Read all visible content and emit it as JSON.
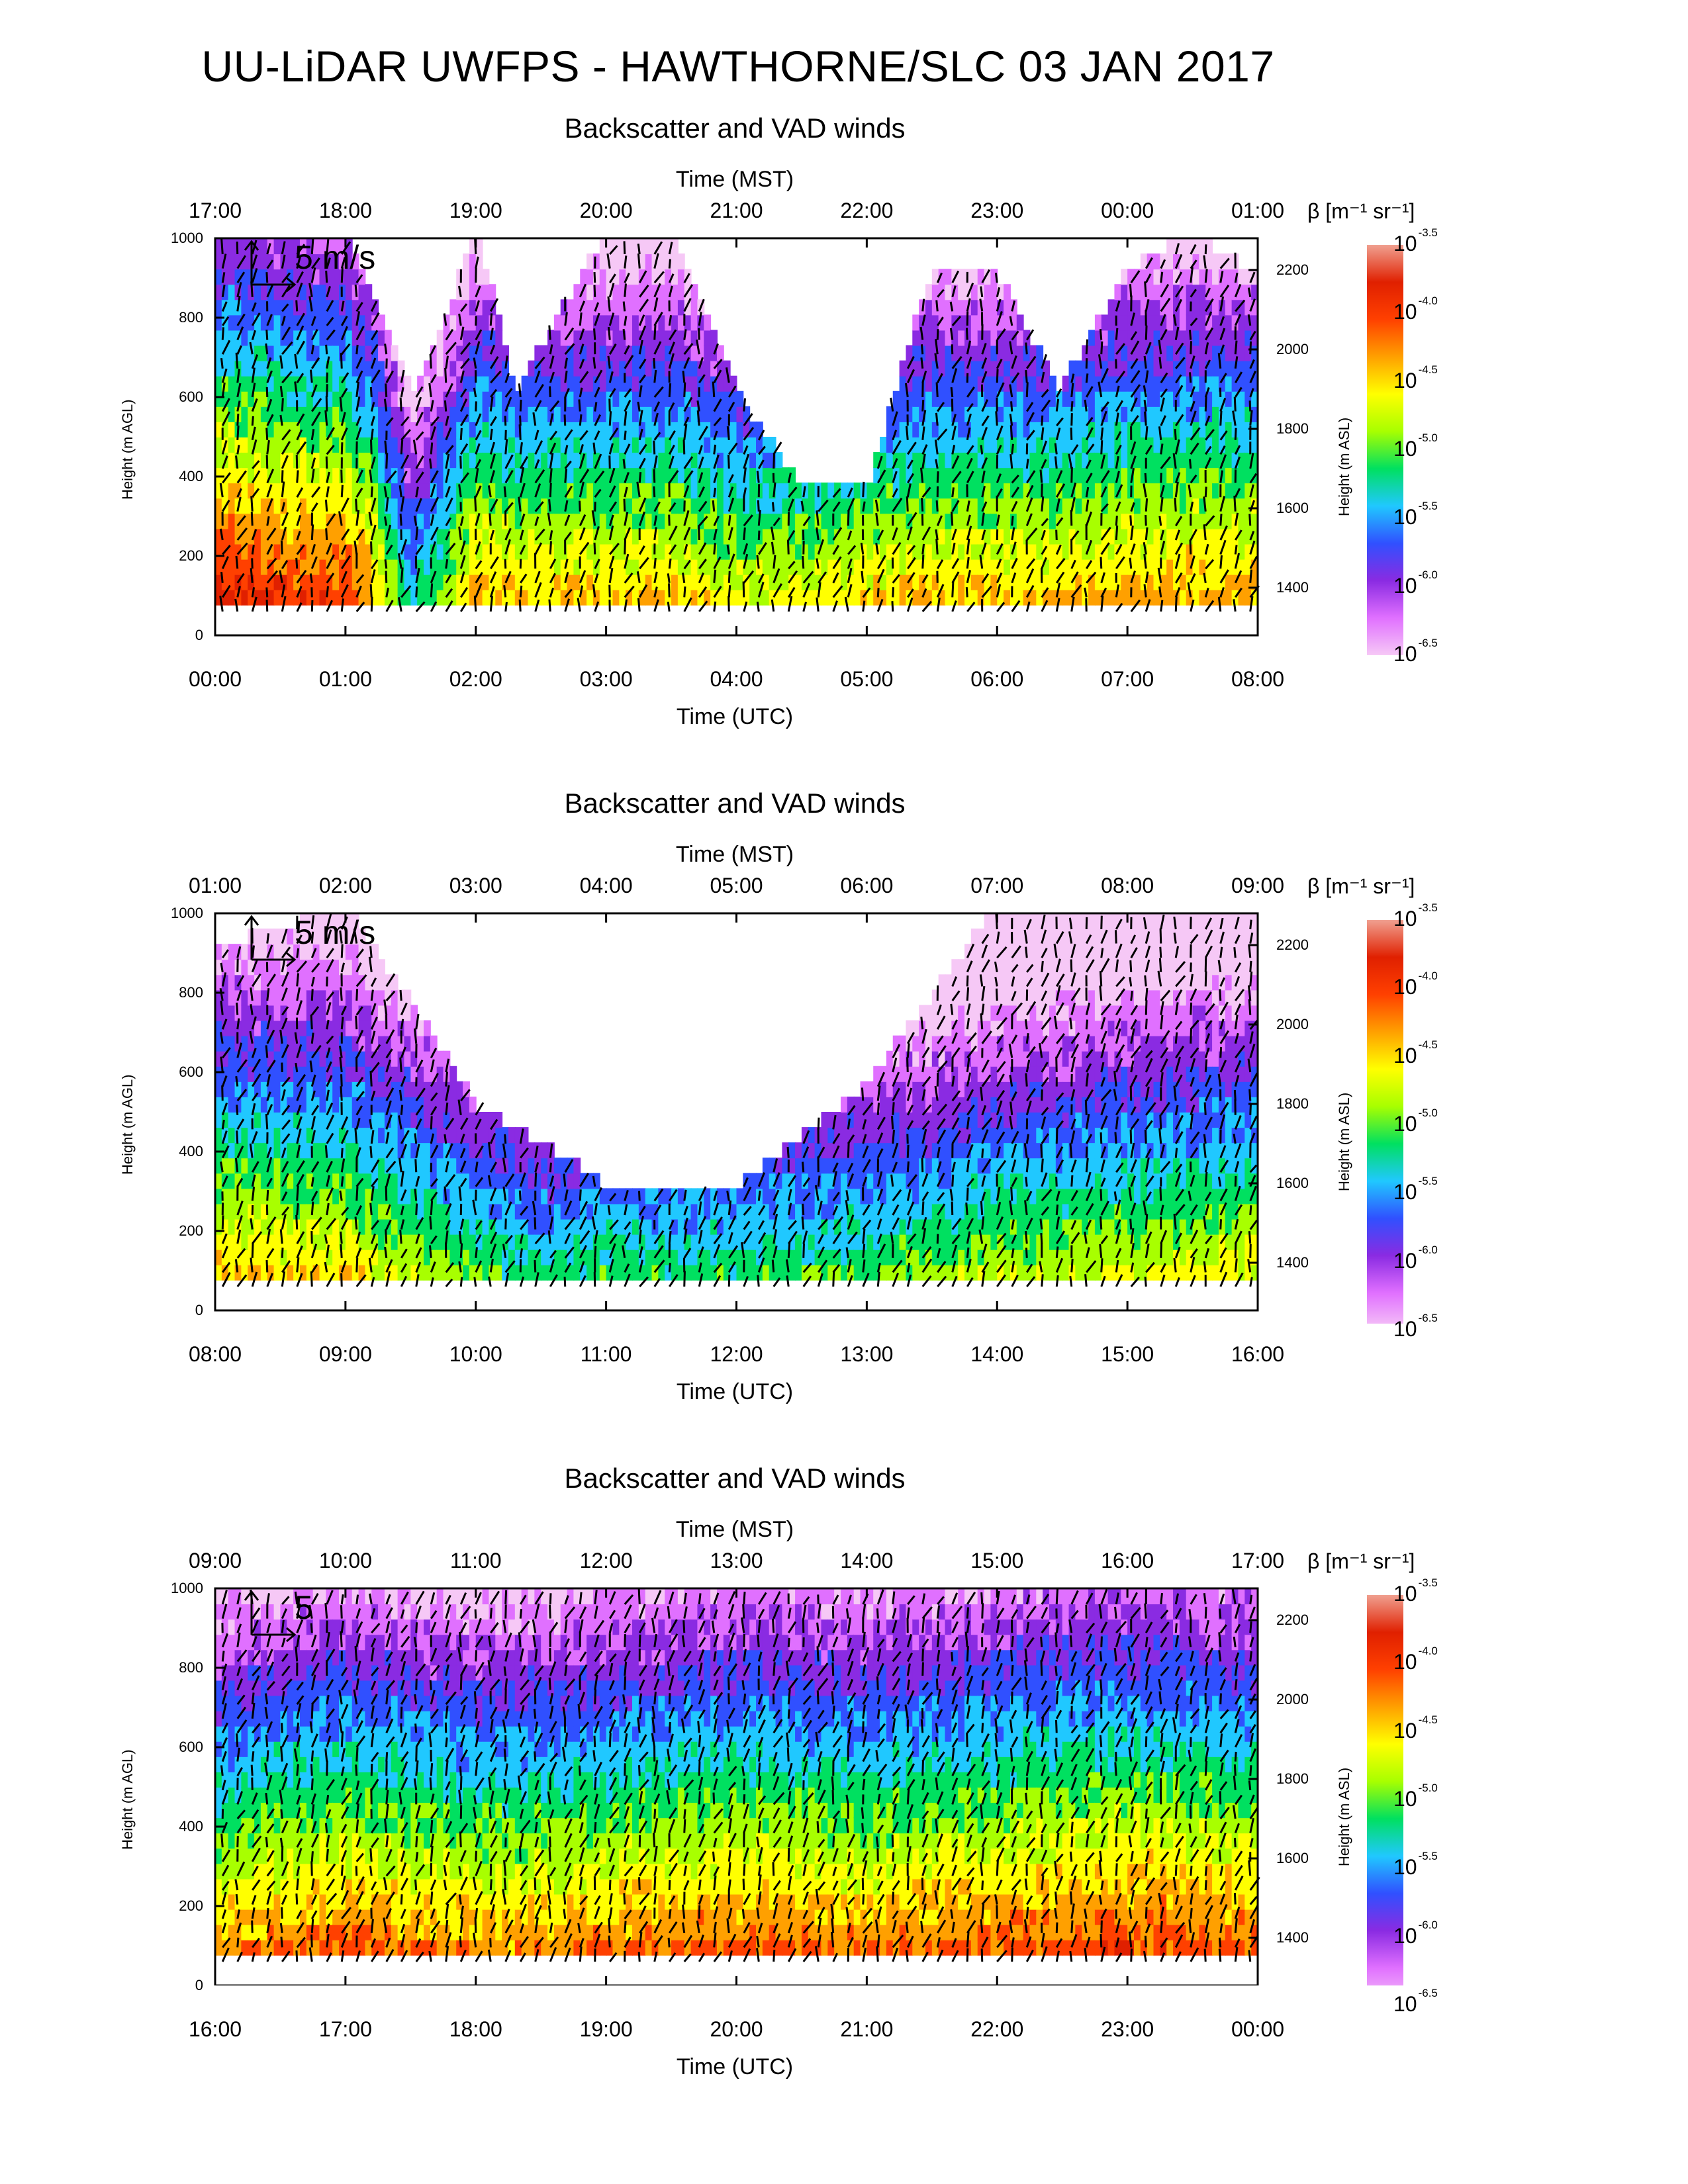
{
  "title": "UU-LiDAR UWFPS - HAWTHORNE/SLC 03 JAN 2017",
  "chart_data": [
    {
      "type": "heatmap",
      "title": "Backscatter and VAD winds",
      "top_axis_label": "Time (MST)",
      "top_ticks": [
        "17:00",
        "18:00",
        "19:00",
        "20:00",
        "21:00",
        "22:00",
        "23:00",
        "00:00",
        "01:00"
      ],
      "bottom_axis_label": "Time (UTC)",
      "bottom_ticks": [
        "00:00",
        "01:00",
        "02:00",
        "03:00",
        "04:00",
        "05:00",
        "06:00",
        "07:00",
        "08:00"
      ],
      "ylabel": "Height (m AGL)",
      "yticks": [
        "0",
        "200",
        "400",
        "600",
        "800",
        "1000"
      ],
      "ylabel_right": "Height (m ASL)",
      "yticks_right": [
        "1400",
        "1600",
        "1800",
        "2000",
        "2200"
      ],
      "ylim": [
        0,
        1000
      ],
      "wind_scale": "5 m/s",
      "colorbar_label": "β [m⁻¹ sr⁻¹]",
      "colorbar_ticks": [
        "-3.5",
        "-4.0",
        "-4.5",
        "-5.0",
        "-5.5",
        "-6.0",
        "-6.5"
      ],
      "colorbar_base": "10",
      "description_series": [
        {
          "t": 0.0,
          "top": 1000,
          "level": -4.0
        },
        {
          "t": 1.0,
          "top": 1000,
          "level": -4.2
        },
        {
          "t": 1.2,
          "top": 820,
          "level": -4.5
        },
        {
          "t": 1.5,
          "top": 590,
          "level": -5.5
        },
        {
          "t": 2.0,
          "top": 1000,
          "level": -4.5
        },
        {
          "t": 2.3,
          "top": 600,
          "level": -4.6
        },
        {
          "t": 3.0,
          "top": 1000,
          "level": -4.6
        },
        {
          "t": 3.5,
          "top": 1000,
          "level": -4.6
        },
        {
          "t": 4.0,
          "top": 600,
          "level": -4.8
        },
        {
          "t": 4.5,
          "top": 350,
          "level": -4.8
        },
        {
          "t": 5.0,
          "top": 350,
          "level": -4.7
        },
        {
          "t": 5.5,
          "top": 900,
          "level": -4.6
        },
        {
          "t": 6.0,
          "top": 900,
          "level": -4.6
        },
        {
          "t": 6.5,
          "top": 600,
          "level": -4.6
        },
        {
          "t": 7.0,
          "top": 900,
          "level": -4.5
        },
        {
          "t": 7.5,
          "top": 1000,
          "level": -4.5
        },
        {
          "t": 8.0,
          "top": 900,
          "level": -4.5
        }
      ]
    },
    {
      "type": "heatmap",
      "title": "Backscatter and VAD winds",
      "top_axis_label": "Time (MST)",
      "top_ticks": [
        "01:00",
        "02:00",
        "03:00",
        "04:00",
        "05:00",
        "06:00",
        "07:00",
        "08:00",
        "09:00"
      ],
      "bottom_axis_label": "Time (UTC)",
      "bottom_ticks": [
        "08:00",
        "09:00",
        "10:00",
        "11:00",
        "12:00",
        "13:00",
        "14:00",
        "15:00",
        "16:00"
      ],
      "ylabel": "Height (m AGL)",
      "yticks": [
        "0",
        "200",
        "400",
        "600",
        "800",
        "1000"
      ],
      "ylabel_right": "Height (m ASL)",
      "yticks_right": [
        "1400",
        "1600",
        "1800",
        "2000",
        "2200"
      ],
      "ylim": [
        0,
        1000
      ],
      "wind_scale": "5 m/s",
      "colorbar_label": "β [m⁻¹ sr⁻¹]",
      "colorbar_ticks": [
        "-3.5",
        "-4.0",
        "-4.5",
        "-5.0",
        "-5.5",
        "-6.0",
        "-6.5"
      ],
      "colorbar_base": "10",
      "description_series": [
        {
          "t": 8.0,
          "top": 900,
          "level": -4.6
        },
        {
          "t": 9.0,
          "top": 1000,
          "level": -4.7
        },
        {
          "t": 10.0,
          "top": 500,
          "level": -5.2
        },
        {
          "t": 10.5,
          "top": 400,
          "level": -5.4
        },
        {
          "t": 11.0,
          "top": 300,
          "level": -5.3
        },
        {
          "t": 12.0,
          "top": 300,
          "level": -5.3
        },
        {
          "t": 13.0,
          "top": 550,
          "level": -5.2
        },
        {
          "t": 14.0,
          "top": 1000,
          "level": -5.0
        },
        {
          "t": 15.0,
          "top": 1000,
          "level": -4.9
        },
        {
          "t": 16.0,
          "top": 1000,
          "level": -4.8
        }
      ]
    },
    {
      "type": "heatmap",
      "title": "Backscatter and VAD winds",
      "top_axis_label": "Time (MST)",
      "top_ticks": [
        "09:00",
        "10:00",
        "11:00",
        "12:00",
        "13:00",
        "14:00",
        "15:00",
        "16:00",
        "17:00"
      ],
      "bottom_axis_label": "Time (UTC)",
      "bottom_ticks": [
        "16:00",
        "17:00",
        "18:00",
        "19:00",
        "20:00",
        "21:00",
        "22:00",
        "23:00",
        "00:00"
      ],
      "ylabel": "Height (m AGL)",
      "yticks": [
        "0",
        "200",
        "400",
        "600",
        "800",
        "1000"
      ],
      "ylabel_right": "Height (m ASL)",
      "yticks_right": [
        "1400",
        "1600",
        "1800",
        "2000",
        "2200"
      ],
      "ylim": [
        0,
        1000
      ],
      "wind_scale": "5",
      "colorbar_label": "β [m⁻¹ sr⁻¹]",
      "colorbar_ticks": [
        "-3.5",
        "-4.0",
        "-4.5",
        "-5.0",
        "-5.5",
        "-6.0",
        "-6.5"
      ],
      "colorbar_base": "10",
      "description_series": [
        {
          "t": 16.0,
          "top": 1000,
          "level": -4.5
        },
        {
          "t": 17.0,
          "top": 1000,
          "level": -4.3
        },
        {
          "t": 18.0,
          "top": 1000,
          "level": -4.5
        },
        {
          "t": 19.0,
          "top": 1000,
          "level": -4.4
        },
        {
          "t": 20.0,
          "top": 1000,
          "level": -4.3
        },
        {
          "t": 21.0,
          "top": 1000,
          "level": -4.4
        },
        {
          "t": 22.0,
          "top": 1000,
          "level": -4.3
        },
        {
          "t": 23.0,
          "top": 1000,
          "level": -4.2
        },
        {
          "t": 24.0,
          "top": 1000,
          "level": -4.3
        }
      ]
    }
  ],
  "colors": {
    "scale": [
      "#f6c8f6",
      "#e070ff",
      "#8a2be2",
      "#3050ff",
      "#20c8ff",
      "#00e060",
      "#a8ff00",
      "#ffff00",
      "#ffa000",
      "#ff4000",
      "#e02000",
      "#f0a090"
    ]
  }
}
